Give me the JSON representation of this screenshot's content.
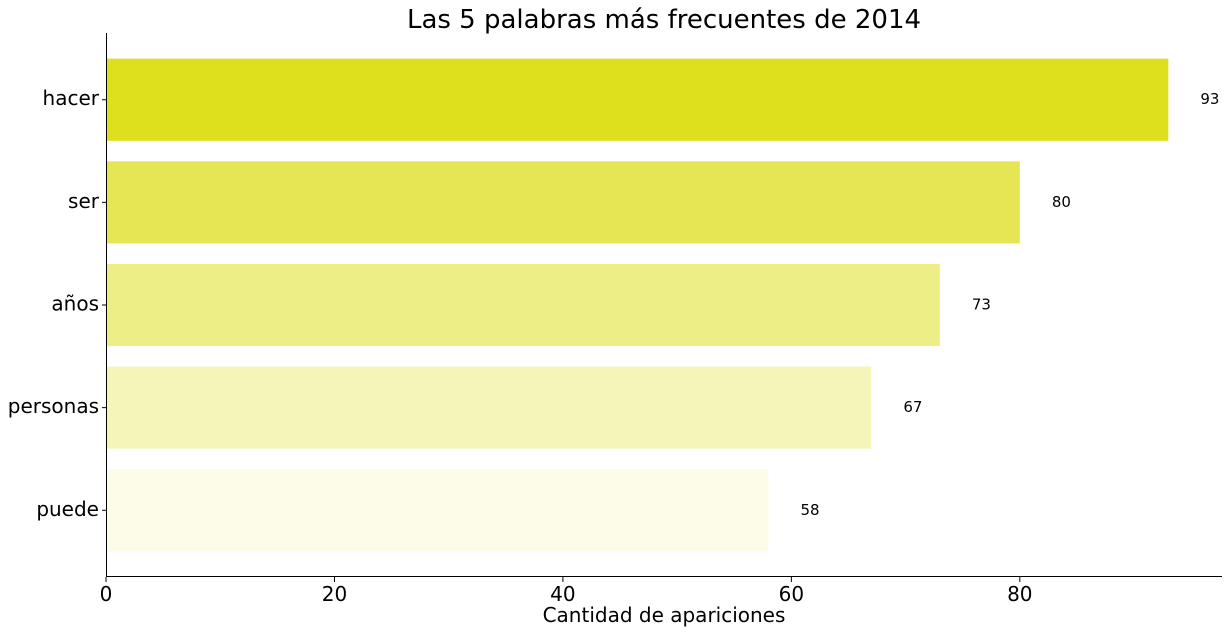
{
  "chart_data": {
    "type": "bar",
    "orientation": "horizontal",
    "title": "Las 5 palabras más frecuentes de 2014",
    "xlabel": "Cantidad de apariciones",
    "ylabel": "",
    "categories": [
      "hacer",
      "ser",
      "años",
      "personas",
      "puede"
    ],
    "values": [
      93,
      80,
      73,
      67,
      58
    ],
    "value_labels": [
      "93",
      "80",
      "73",
      "67",
      "58"
    ],
    "bar_colors": [
      "#dfe01d",
      "#e6e655",
      "#eeee86",
      "#f4f5b8",
      "#fcfce9"
    ],
    "xlim": [
      0,
      97.7
    ],
    "xticks": [
      0,
      20,
      40,
      60,
      80
    ],
    "xtick_labels": [
      "0",
      "20",
      "40",
      "60",
      "80"
    ],
    "grid": false,
    "legend": "none"
  }
}
